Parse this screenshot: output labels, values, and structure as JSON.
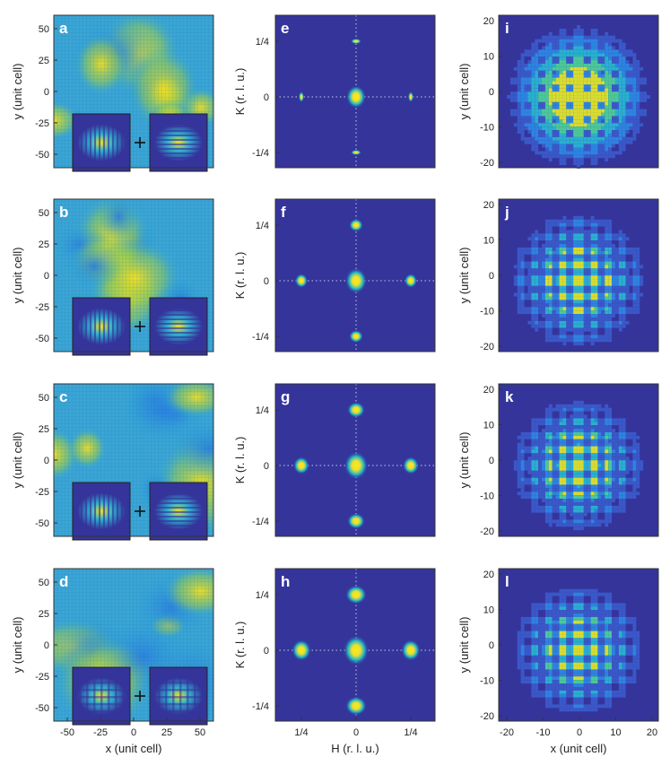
{
  "figure": {
    "colormap": {
      "bg": "#35349b",
      "mid": "#2fa8d8",
      "high": "#ffe020",
      "cyan": "#26c0b0"
    },
    "col1": {
      "ylabel": "y (unit cell)",
      "xlabel": "x (unit cell)",
      "xticks": [
        "-50",
        "-25",
        "0",
        "25",
        "50"
      ],
      "yticks": [
        "50",
        "25",
        "0",
        "-25",
        "-50"
      ],
      "panels": [
        {
          "letter": "a",
          "left_inset": "horizontal-stripes",
          "right_inset": "vertical-stripes"
        },
        {
          "letter": "b",
          "left_inset": "horizontal-stripes",
          "right_inset": "vertical-stripes"
        },
        {
          "letter": "c",
          "left_inset": "horizontal-stripes",
          "right_inset": "vertical-stripes"
        },
        {
          "letter": "d",
          "left_inset": "checkerboard",
          "right_inset": "checkerboard"
        }
      ]
    },
    "col2": {
      "ylabel": "K  (r. l. u.)",
      "xlabel": "H  (r. l. u.)",
      "xticks": [
        "1/4",
        "0",
        "1/4"
      ],
      "yticks": [
        "1/4",
        "0",
        "-1/4"
      ],
      "panels": [
        {
          "letter": "e"
        },
        {
          "letter": "f"
        },
        {
          "letter": "g"
        },
        {
          "letter": "h"
        }
      ]
    },
    "col3": {
      "ylabel": "y (unit cell)",
      "xlabel": "x (unit cell)",
      "xticks": [
        "-20",
        "-10",
        "0",
        "10",
        "20"
      ],
      "yticks": [
        "20",
        "10",
        "0",
        "-10",
        "-20"
      ],
      "panels": [
        {
          "letter": "i"
        },
        {
          "letter": "j"
        },
        {
          "letter": "k"
        },
        {
          "letter": "l"
        }
      ]
    }
  }
}
